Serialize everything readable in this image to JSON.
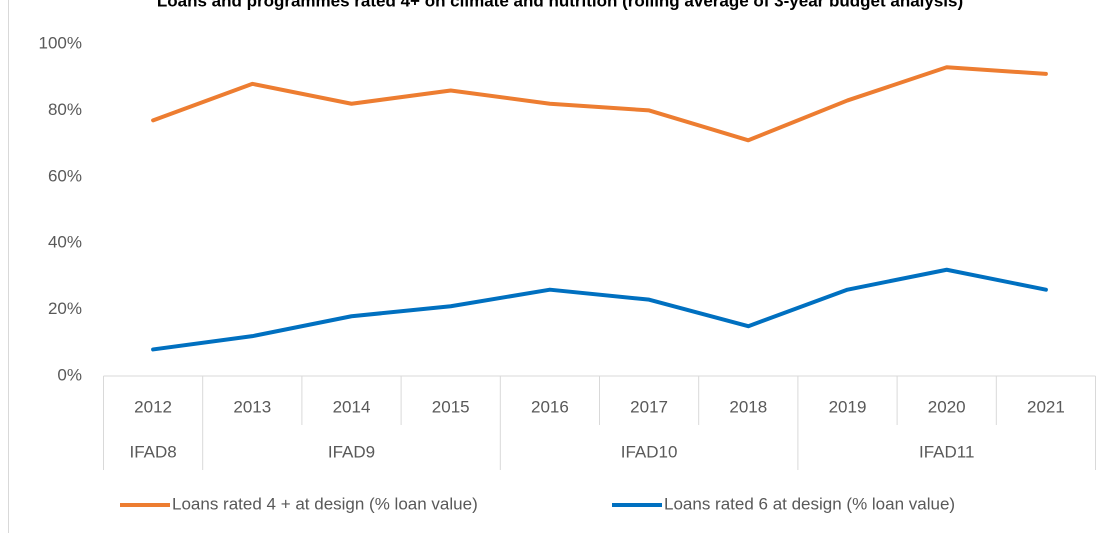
{
  "chart_data": {
    "type": "line",
    "title": "Loans and programmes rated 4+ on climate and nutrition (rolling average of 3-year budget analysis)",
    "categories": [
      "2012",
      "2013",
      "2014",
      "2015",
      "2016",
      "2017",
      "2018",
      "2019",
      "2020",
      "2021"
    ],
    "groups": [
      {
        "name": "IFAD8",
        "count": 1
      },
      {
        "name": "IFAD9",
        "count": 3
      },
      {
        "name": "IFAD10",
        "count": 3
      },
      {
        "name": "IFAD11",
        "count": 3
      }
    ],
    "series": [
      {
        "name": "Loans rated 4 + at design (% loan value)",
        "color": "#ed7d31",
        "values": [
          77,
          88,
          82,
          86,
          82,
          80,
          71,
          83,
          93,
          91
        ]
      },
      {
        "name": "Loans rated 6 at design (% loan value)",
        "color": "#0070c0",
        "values": [
          8,
          12,
          18,
          21,
          26,
          23,
          15,
          26,
          32,
          26
        ]
      }
    ],
    "ylim": [
      0,
      100
    ],
    "yticks": [
      {
        "value": 0,
        "label": "0%"
      },
      {
        "value": 20,
        "label": "20%"
      },
      {
        "value": 40,
        "label": "40%"
      },
      {
        "value": 60,
        "label": "60%"
      },
      {
        "value": 80,
        "label": "80%"
      },
      {
        "value": 100,
        "label": "100%"
      }
    ],
    "legend": "bottom"
  }
}
